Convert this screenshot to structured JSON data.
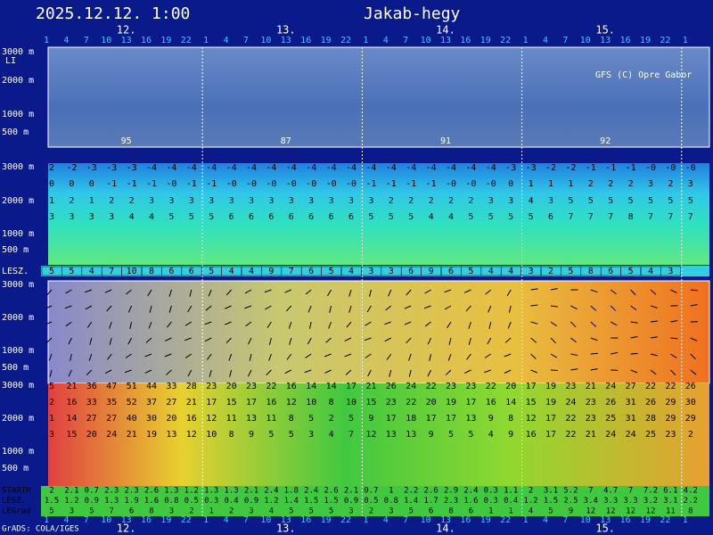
{
  "chart_data": {
    "type": "meteogram",
    "title": "2025.12.12. 1:00",
    "location": "Jakab-hegy",
    "credit": "GFS (C) Opre Gabor",
    "footer": "GrADS: COLA/IGES",
    "days": [
      "12.",
      "13.",
      "14.",
      "15."
    ],
    "hours": [
      "1",
      "4",
      "7",
      "10",
      "13",
      "16",
      "19",
      "22",
      "1",
      "4",
      "7",
      "10",
      "13",
      "16",
      "19",
      "22",
      "1",
      "4",
      "7",
      "10",
      "13",
      "16",
      "19",
      "22",
      "1",
      "4",
      "7",
      "10",
      "13",
      "16",
      "19",
      "22",
      "1"
    ],
    "height_labels": [
      "3000 m",
      "2000 m",
      "1000 m",
      "500 m"
    ],
    "li_label": "LI",
    "cloud_values": [
      "95",
      "87",
      "91",
      "92"
    ],
    "temperature_rows": [
      [
        "2",
        "-2",
        "-3",
        "-3",
        "-3",
        "-4",
        "-4",
        "-4",
        "-4",
        "-4",
        "-4",
        "-4",
        "-4",
        "-4",
        "-4",
        "-4",
        "-4",
        "-4",
        "-4",
        "-4",
        "-4",
        "-4",
        "-4",
        "-3",
        "-3",
        "-2",
        "-2",
        "-1",
        "-1",
        "-1",
        "-0",
        "-0",
        "-0"
      ],
      [
        "0",
        "0",
        "0",
        "-1",
        "-1",
        "-1",
        "-0",
        "-1",
        "-1",
        "-0",
        "-0",
        "-0",
        "-0",
        "-0",
        "-0",
        "-0",
        "-1",
        "-1",
        "-1",
        "-1",
        "-0",
        "-0",
        "-0",
        "0",
        "1",
        "1",
        "1",
        "2",
        "2",
        "2",
        "3",
        "2",
        "3"
      ],
      [
        "1",
        "2",
        "1",
        "2",
        "2",
        "3",
        "3",
        "3",
        "3",
        "3",
        "3",
        "3",
        "3",
        "3",
        "3",
        "3",
        "3",
        "2",
        "2",
        "2",
        "2",
        "2",
        "3",
        "3",
        "4",
        "3",
        "5",
        "5",
        "5",
        "5",
        "5",
        "5",
        "5"
      ],
      [
        "3",
        "3",
        "3",
        "3",
        "4",
        "4",
        "5",
        "5",
        "5",
        "6",
        "6",
        "6",
        "6",
        "6",
        "6",
        "6",
        "5",
        "5",
        "5",
        "4",
        "4",
        "5",
        "5",
        "5",
        "5",
        "6",
        "7",
        "7",
        "7",
        "8",
        "7",
        "7",
        "7"
      ]
    ],
    "lesz_label": "LESZ.",
    "lesz_row": [
      "5",
      "5",
      "4",
      "7",
      "10",
      "8",
      "6",
      "6",
      "5",
      "4",
      "4",
      "9",
      "7",
      "6",
      "5",
      "4",
      "3",
      "3",
      "6",
      "9",
      "6",
      "5",
      "4",
      "4",
      "3",
      "2",
      "5",
      "8",
      "6",
      "5",
      "4",
      "3"
    ],
    "wind_rows": [
      [
        "5",
        "21",
        "36",
        "47",
        "51",
        "44",
        "33",
        "28",
        "23",
        "20",
        "23",
        "22",
        "16",
        "14",
        "14",
        "17",
        "21",
        "26",
        "24",
        "22",
        "23",
        "23",
        "22",
        "20",
        "17",
        "19",
        "23",
        "21",
        "24",
        "27",
        "22",
        "22",
        "26"
      ],
      [
        "2",
        "16",
        "33",
        "35",
        "52",
        "37",
        "27",
        "21",
        "17",
        "15",
        "17",
        "16",
        "12",
        "10",
        "8",
        "10",
        "15",
        "23",
        "22",
        "20",
        "19",
        "17",
        "16",
        "14",
        "15",
        "19",
        "24",
        "23",
        "26",
        "31",
        "26",
        "29",
        "30"
      ],
      [
        "1",
        "14",
        "27",
        "27",
        "40",
        "30",
        "20",
        "16",
        "12",
        "11",
        "13",
        "11",
        "8",
        "5",
        "2",
        "5",
        "9",
        "17",
        "18",
        "17",
        "17",
        "13",
        "9",
        "8",
        "12",
        "17",
        "22",
        "23",
        "25",
        "31",
        "28",
        "29",
        "29"
      ],
      [
        "3",
        "15",
        "20",
        "24",
        "21",
        "19",
        "13",
        "12",
        "10",
        "8",
        "9",
        "5",
        "5",
        "3",
        "4",
        "7",
        "12",
        "13",
        "13",
        "9",
        "5",
        "5",
        "4",
        "9",
        "16",
        "17",
        "22",
        "21",
        "24",
        "24",
        "25",
        "23",
        "2"
      ]
    ],
    "bottom_rows": [
      {
        "name": "STARTH",
        "values": [
          "2",
          "2.1",
          "0.7",
          "2.3",
          "2.3",
          "2.6",
          "1.3",
          "1.2",
          "1.3",
          "1.3",
          "2.1",
          "2.4",
          "1.8",
          "2.4",
          "2.6",
          "2.1",
          "0.7",
          "1",
          "2.2",
          "2.6",
          "2.9",
          "2.4",
          "0.3",
          "1.1",
          "2",
          "3.1",
          "5.2",
          "7",
          "4.7",
          "7",
          "7.2",
          "6.1",
          "4.2"
        ]
      },
      {
        "name": "LESZ.",
        "values": [
          "1.5",
          "1.2",
          "0.9",
          "1.3",
          "1.9",
          "1.6",
          "0.8",
          "0.5",
          "0.3",
          "0.4",
          "0.9",
          "1.2",
          "1.4",
          "1.5",
          "1.5",
          "0.9",
          "0.5",
          "0.8",
          "1.4",
          "1.7",
          "2.3",
          "1.6",
          "0.3",
          "0.4",
          "1.2",
          "1.5",
          "2.5",
          "3.4",
          "3.3",
          "3.3",
          "3.2",
          "3.1",
          "2.2"
        ]
      },
      {
        "name": "LEGrad",
        "values": [
          "5",
          "3",
          "5",
          "7",
          "6",
          "8",
          "3",
          "2",
          "1",
          "2",
          "3",
          "4",
          "5",
          "5",
          "5",
          "3",
          "2",
          "3",
          "5",
          "6",
          "8",
          "6",
          "1",
          "1",
          "4",
          "5",
          "9",
          "12",
          "12",
          "12",
          "12",
          "11",
          "8"
        ]
      }
    ]
  }
}
